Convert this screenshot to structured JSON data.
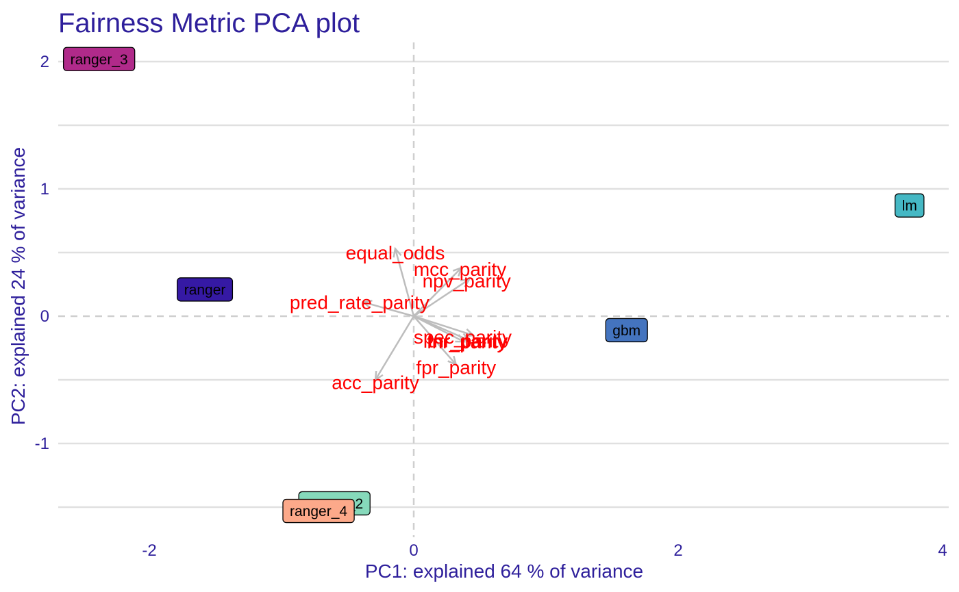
{
  "chart_data": {
    "type": "scatter",
    "title": "Fairness Metric PCA plot",
    "xlabel": "PC1: explained 64 % of variance",
    "ylabel": "PC2: explained 24 % of variance",
    "xlim": [
      -2.7,
      4.0
    ],
    "ylim": [
      -1.75,
      2.1
    ],
    "x_ticks": [
      -2,
      0,
      2,
      4
    ],
    "y_ticks": [
      -1,
      0,
      1,
      2
    ],
    "grid": true,
    "colors": {
      "text": "#2e1f9b",
      "grid": "#e0e0e0",
      "zero_line": "#cfcfcf",
      "arrow": "#bdbdbd",
      "loading_label": "#ff0000",
      "label_border": "#000000"
    },
    "models": [
      {
        "name": "ranger_3",
        "x": -2.38,
        "y": 2.02,
        "color": "#b02a8a"
      },
      {
        "name": "lm",
        "x": 3.75,
        "y": 0.87,
        "color": "#45b8c4"
      },
      {
        "name": "ranger",
        "x": -1.58,
        "y": 0.21,
        "color": "#3519a4"
      },
      {
        "name": "gbm",
        "x": 1.61,
        "y": -0.11,
        "color": "#4474bf"
      },
      {
        "name": "ranger_2",
        "x": -0.6,
        "y": -1.47,
        "color": "#86d9bb"
      },
      {
        "name": "ranger_4",
        "x": -0.72,
        "y": -1.53,
        "color": "#fca98a"
      }
    ],
    "loadings": [
      {
        "name": "equal_odds",
        "x": -0.14,
        "y": 0.53,
        "label_x": -0.14,
        "label_y": 0.5
      },
      {
        "name": "mcc_parity",
        "x": 0.36,
        "y": 0.38,
        "label_x": 0.35,
        "label_y": 0.37
      },
      {
        "name": "npv_parity",
        "x": 0.42,
        "y": 0.29,
        "label_x": 0.4,
        "label_y": 0.28
      },
      {
        "name": "pred_rate_parity",
        "x": -0.38,
        "y": 0.11,
        "label_x": -0.41,
        "label_y": 0.11
      },
      {
        "name": "spec_parity",
        "x": 0.45,
        "y": -0.15,
        "label_x": 0.37,
        "label_y": -0.16
      },
      {
        "name": "fnr_parity",
        "x": 0.38,
        "y": -0.2,
        "label_x": 0.4,
        "label_y": -0.2
      },
      {
        "name": "tnr_parity",
        "x": 0.42,
        "y": -0.19,
        "label_x": 0.41,
        "label_y": -0.19
      },
      {
        "name": "fpr_parity",
        "x": 0.32,
        "y": -0.38,
        "label_x": 0.32,
        "label_y": -0.4
      },
      {
        "name": "acc_parity",
        "x": -0.29,
        "y": -0.5,
        "label_x": -0.29,
        "label_y": -0.52
      }
    ]
  }
}
